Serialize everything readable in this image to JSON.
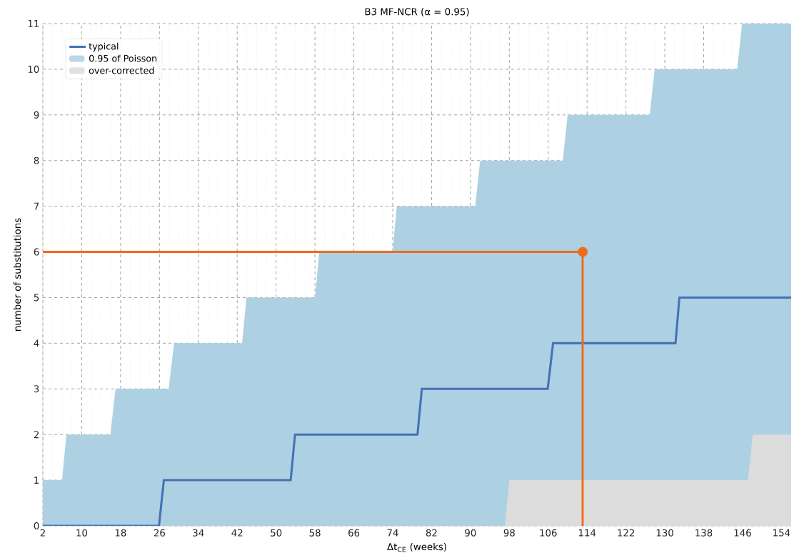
{
  "chart_data": {
    "type": "line",
    "title": "B3 MF-NCR (α = 0.95)",
    "xlabel": "Δt$_{CE}$ (weeks)",
    "ylabel": "number of substitutions",
    "xlim": [
      2,
      156
    ],
    "ylim": [
      0,
      11
    ],
    "xticks": [
      2,
      10,
      18,
      26,
      34,
      42,
      50,
      58,
      66,
      74,
      82,
      90,
      98,
      106,
      114,
      122,
      130,
      138,
      146,
      154
    ],
    "yticks": [
      0,
      1,
      2,
      3,
      4,
      5,
      6,
      7,
      8,
      9,
      10,
      11
    ],
    "grid": true,
    "legend": "top left",
    "series": [
      {
        "name": "typical",
        "color": "#4472b4",
        "x": [
          2,
          25.9,
          26.9,
          53.0,
          53.9,
          79.1,
          80.0,
          105.9,
          107.0,
          132.2,
          133.0,
          156
        ],
        "values": [
          0,
          0,
          1,
          1,
          2,
          2,
          3,
          3,
          4,
          4,
          5,
          5
        ]
      },
      {
        "name": "0.95 of Poisson",
        "type": "area",
        "color": "#aed0e3",
        "x": [
          2,
          5.96,
          6.84,
          15.9,
          16.95,
          27.9,
          29.0,
          43.0,
          43.9,
          58.0,
          58.9,
          73.97,
          74.85,
          90.97,
          92.0,
          97.1,
          98.0,
          109.0,
          110.0,
          126.9,
          127.9,
          144.9,
          145.9,
          147.1,
          148.1,
          156
        ],
        "values": [
          1,
          1,
          2,
          2,
          3,
          3,
          4,
          4,
          5,
          5,
          6,
          6,
          7,
          7,
          8,
          8,
          8,
          8,
          9,
          9,
          10,
          10,
          11,
          11,
          11,
          11
        ]
      },
      {
        "name": "over-corrected",
        "type": "area",
        "color": "#dcdcdc",
        "x": [
          2,
          97.1,
          98.0,
          147.1,
          148.1,
          156
        ],
        "values": [
          0,
          0,
          1,
          1,
          2,
          2
        ]
      },
      {
        "color": "#f06a1c",
        "x": [
          2,
          113.1,
          113.1
        ],
        "values": [
          6,
          6,
          0
        ]
      },
      {
        "type": "scatter",
        "color": "#f06a1c",
        "x": [
          113.1
        ],
        "values": [
          6
        ]
      }
    ]
  }
}
